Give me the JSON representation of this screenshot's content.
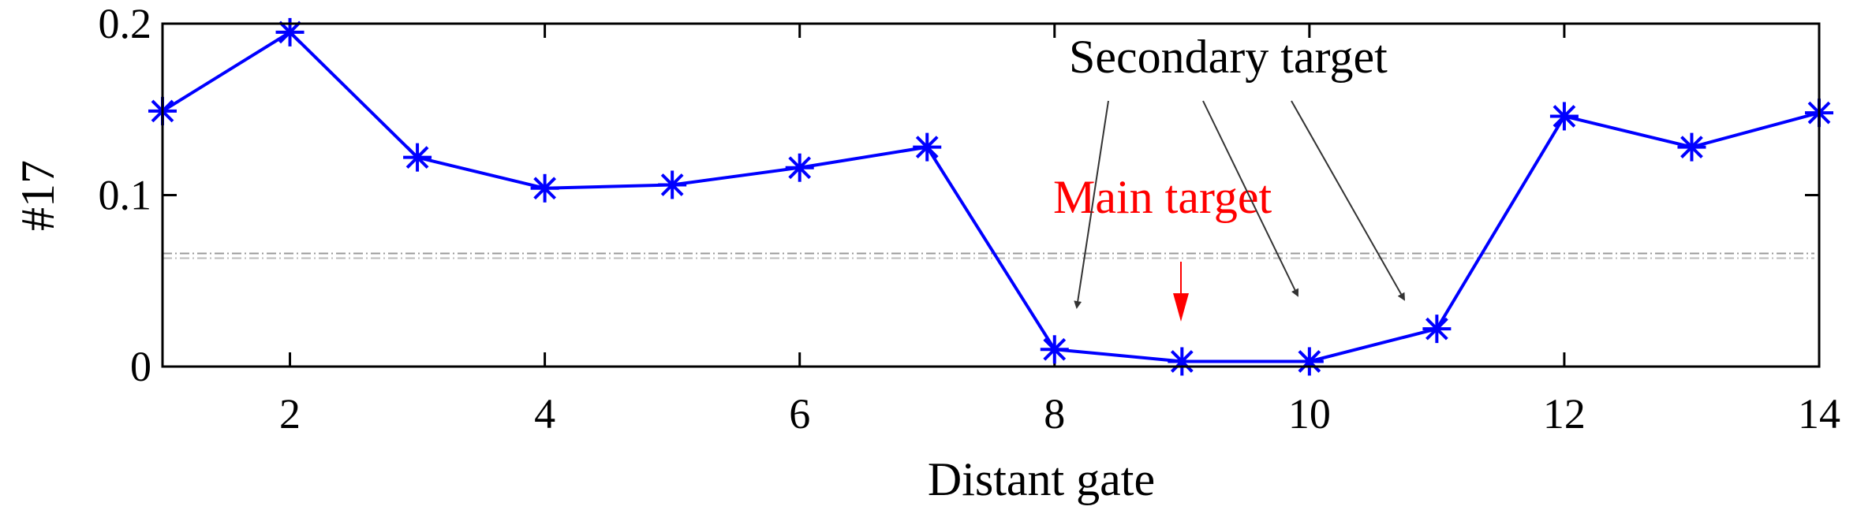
{
  "chart_data": {
    "type": "line",
    "xlabel": "Distant gate",
    "ylabel": "#17",
    "xlim": [
      1,
      14
    ],
    "ylim": [
      0,
      0.2
    ],
    "xticks": [
      "2",
      "4",
      "6",
      "8",
      "10",
      "12",
      "14"
    ],
    "yticks": [
      "0",
      "0.1",
      "0.2"
    ],
    "grid": false,
    "series": [
      {
        "x": [
          1,
          2,
          3,
          4,
          5,
          6,
          7,
          8,
          9,
          10,
          11,
          12,
          13,
          14
        ],
        "values": [
          0.149,
          0.195,
          0.122,
          0.104,
          0.106,
          0.116,
          0.128,
          0.01,
          0.003,
          0.003,
          0.022,
          0.146,
          0.128,
          0.148
        ],
        "color": "#0000ff",
        "marker": "asterisk"
      }
    ],
    "threshold": 0.066,
    "annotations": {
      "main_target": {
        "text": "Main target",
        "color": "#ff0000",
        "points_to_x": 9
      },
      "secondary_target": {
        "text": "Secondary target",
        "color": "#000000",
        "points_to_x": [
          8,
          10,
          11
        ]
      }
    }
  }
}
